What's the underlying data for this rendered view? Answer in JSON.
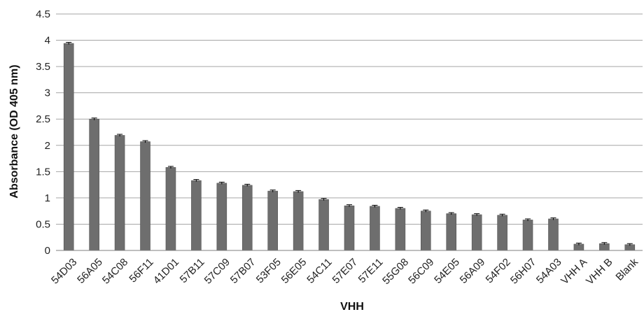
{
  "chart_data": {
    "type": "bar",
    "title": "",
    "xlabel": "VHH",
    "ylabel": "Absorbance (OD 405 nm)",
    "ylim": [
      0,
      4.5
    ],
    "yticks": [
      "0",
      "0.5",
      "1",
      "1.5",
      "2",
      "2.5",
      "3",
      "3.5",
      "4",
      "4.5"
    ],
    "grid": true,
    "legend": "none",
    "bar_color": "#6e6e6e",
    "grid_color": "#a6a6a6",
    "categories": [
      "54D03",
      "56A05",
      "54C08",
      "56F11",
      "41D01",
      "57B11",
      "57C09",
      "57B07",
      "53F05",
      "56E05",
      "54C11",
      "57E07",
      "57E11",
      "55G08",
      "56C09",
      "54E05",
      "56A09",
      "54F02",
      "56H07",
      "54A03",
      "VHH A",
      "VHH B",
      "Blank"
    ],
    "values": [
      3.94,
      2.5,
      2.19,
      2.07,
      1.58,
      1.33,
      1.28,
      1.24,
      1.13,
      1.12,
      0.97,
      0.85,
      0.84,
      0.8,
      0.75,
      0.7,
      0.68,
      0.67,
      0.58,
      0.6,
      0.12,
      0.13,
      0.11
    ],
    "error_bars": [
      0.02,
      0.02,
      0.02,
      0.02,
      0.02,
      0.02,
      0.02,
      0.02,
      0.02,
      0.02,
      0.02,
      0.02,
      0.02,
      0.02,
      0.02,
      0.02,
      0.02,
      0.02,
      0.02,
      0.02,
      0.02,
      0.02,
      0.02
    ]
  }
}
